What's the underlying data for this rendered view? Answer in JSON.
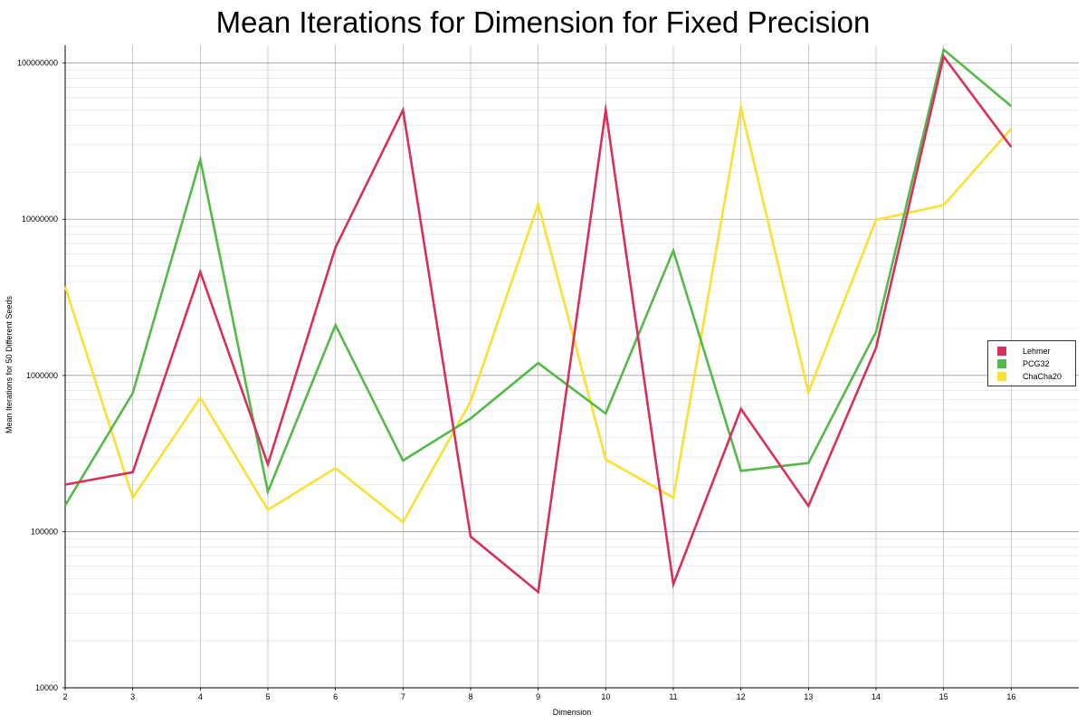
{
  "chart_data": {
    "type": "line",
    "title": "Mean Iterations for Dimension for Fixed Precision",
    "xlabel": "Dimension",
    "ylabel": "Mean Iterations for 50 Different Seeds",
    "yscale": "log",
    "ylim": [
      10000,
      130000000
    ],
    "xlim": [
      2,
      17
    ],
    "x": [
      2,
      3,
      4,
      5,
      6,
      7,
      8,
      9,
      10,
      11,
      12,
      13,
      14,
      15,
      16
    ],
    "x_tick_labels": [
      "2",
      "3",
      "4",
      "5",
      "6",
      "7",
      "8",
      "9",
      "10",
      "11",
      "12",
      "13",
      "14",
      "15",
      "16"
    ],
    "y_tick_labels": [
      {
        "value": 10000,
        "label": "10000"
      },
      {
        "value": 100000,
        "label": "100000"
      },
      {
        "value": 1000000,
        "label": "1000000"
      },
      {
        "value": 10000000,
        "label": "10000000"
      },
      {
        "value": 100000000,
        "label": "100000000"
      }
    ],
    "grid": true,
    "legend_position": "right",
    "series": [
      {
        "name": "Lehmer",
        "color": "#d7305a",
        "values": [
          200000,
          240000,
          4600000,
          270000,
          6600000,
          50000000,
          93000,
          41000,
          50000000,
          46000,
          610000,
          146000,
          1500000,
          110000000,
          29000000
        ]
      },
      {
        "name": "PCG32",
        "color": "#54b948",
        "values": [
          147000,
          770000,
          24000000,
          180000,
          2100000,
          285000,
          530000,
          1200000,
          570000,
          6300000,
          245000,
          275000,
          1900000,
          122000000,
          53000000
        ]
      },
      {
        "name": "ChaCha20",
        "color": "#fae032",
        "values": [
          3700000,
          165000,
          720000,
          138000,
          255000,
          115000,
          680000,
          12500000,
          290000,
          165000,
          52000000,
          780000,
          9900000,
          12300000,
          38000000
        ]
      }
    ]
  }
}
